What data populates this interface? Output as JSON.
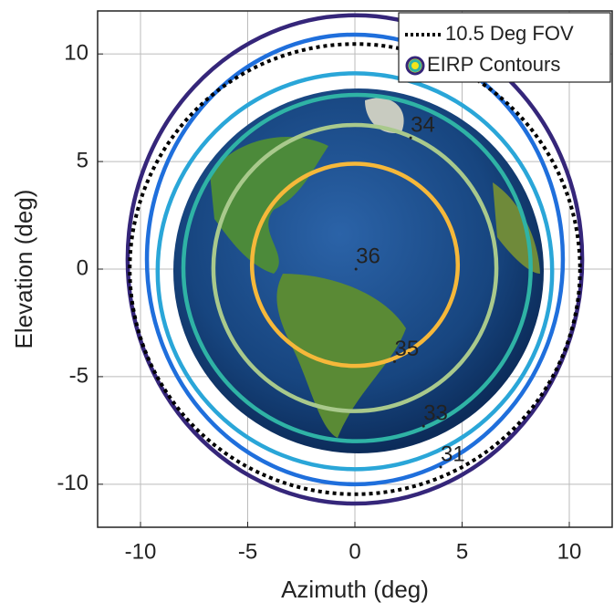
{
  "chart_data": {
    "type": "contour",
    "xlabel": "Azimuth (deg)",
    "ylabel": "Elevation (deg)",
    "xlim": [
      -12,
      12
    ],
    "ylim": [
      -12,
      12
    ],
    "xticks": [
      -10,
      -5,
      0,
      5,
      10
    ],
    "yticks": [
      -10,
      -5,
      0,
      5,
      10
    ],
    "grid": true,
    "legend_position": "upper-right",
    "fov": {
      "name": "10.5 Deg FOV",
      "radius": 10.5,
      "color": "#000000"
    },
    "contour_legend": "EIRP Contours",
    "contours": [
      {
        "color": "#35267a",
        "cx": 0,
        "cy": 0.45,
        "rx": 10.6,
        "ry": 11.35
      },
      {
        "color": "#1f6fdc",
        "cx": 0,
        "cy": 0.45,
        "rx": 9.7,
        "ry": 10.45
      },
      {
        "color": "#2aa6d8",
        "cx": 0,
        "cy": -0.1,
        "rx": 9.2,
        "ry": 9.2
      },
      {
        "color": "#2fb3a5",
        "cx": 0.1,
        "cy": 0.05,
        "rx": 8.1,
        "ry": 8.05
      },
      {
        "color": "#a9c98c",
        "cx": 0,
        "cy": 0.05,
        "rx": 6.6,
        "ry": 6.65
      },
      {
        "color": "#f6b83a",
        "cx": 0,
        "cy": 0.2,
        "rx": 4.8,
        "ry": 4.7
      }
    ],
    "annotations": [
      {
        "label": "34",
        "x": 2.6,
        "y": 6.1
      },
      {
        "label": "36",
        "x": 0.05,
        "y": 0.0
      },
      {
        "label": "35",
        "x": 1.85,
        "y": -4.3
      },
      {
        "label": "33",
        "x": 3.2,
        "y": -7.3
      },
      {
        "label": "31",
        "x": 4.0,
        "y": -9.2
      }
    ]
  }
}
